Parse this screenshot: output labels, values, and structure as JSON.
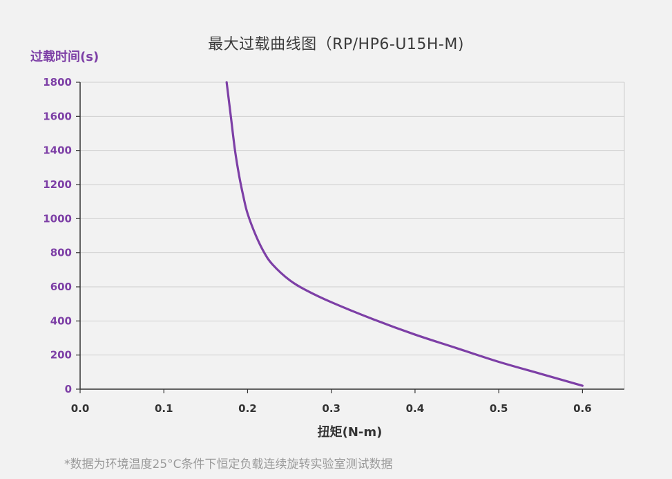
{
  "chart_data": {
    "type": "line",
    "title": "最大过载曲线图（RP/HP6-U15H-M)",
    "xlabel": "扭矩(N-m)",
    "ylabel": "过载时间(s)",
    "xlim": [
      0,
      0.65
    ],
    "ylim": [
      0,
      1800
    ],
    "x_ticks": [
      "0.0",
      "0.1",
      "0.2",
      "0.3",
      "0.4",
      "0.5",
      "0.6"
    ],
    "x_tick_values": [
      0,
      0.1,
      0.2,
      0.3,
      0.4,
      0.5,
      0.6
    ],
    "y_ticks": [
      "0",
      "200",
      "400",
      "600",
      "800",
      "1000",
      "1200",
      "1400",
      "1600",
      "1800"
    ],
    "y_tick_values": [
      0,
      200,
      400,
      600,
      800,
      1000,
      1200,
      1400,
      1600,
      1800
    ],
    "grid": true,
    "series": [
      {
        "color": "#7d3fa6",
        "x": [
          0.175,
          0.18,
          0.185,
          0.19,
          0.195,
          0.2,
          0.21,
          0.22,
          0.23,
          0.25,
          0.27,
          0.3,
          0.35,
          0.4,
          0.45,
          0.5,
          0.55,
          0.6
        ],
        "y": [
          1800,
          1600,
          1400,
          1250,
          1130,
          1030,
          900,
          800,
          730,
          640,
          580,
          510,
          410,
          320,
          240,
          160,
          90,
          20
        ]
      }
    ],
    "footnote": "*数据为环境温度25°C条件下恒定负载连续旋转实验室测试数据"
  }
}
